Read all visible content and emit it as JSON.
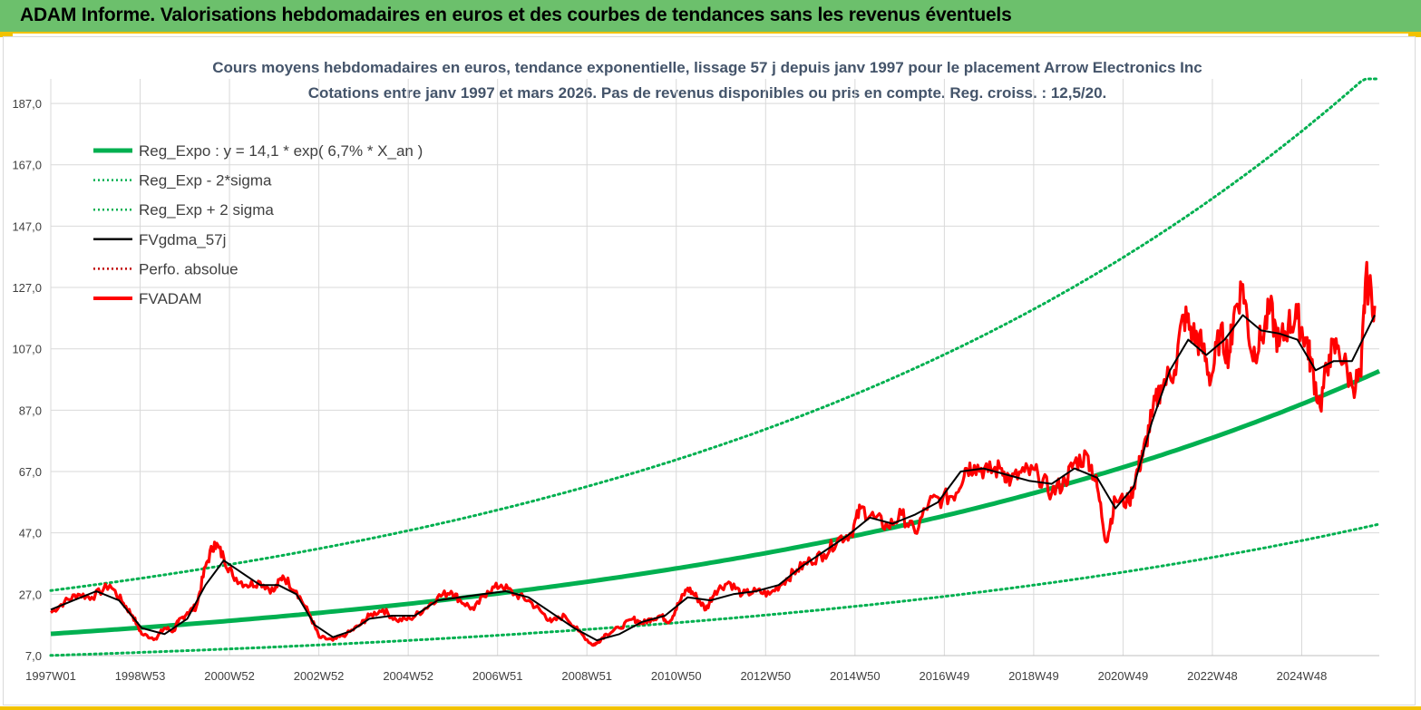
{
  "header": {
    "title": "ADAM Informe. Valorisations hebdomadaires en euros et des courbes de tendances sans les revenus éventuels"
  },
  "colors": {
    "header_bg": "#6cc06c",
    "accent": "#f2c200",
    "reg_green": "#00b050",
    "price_red": "#ff0000",
    "smooth_black": "#000000",
    "grid": "#d9d9d9"
  },
  "chart_data": {
    "type": "line",
    "title": [
      "Cours moyens hebdomadaires en euros, tendance exponentielle, lissage 57 j depuis janv 1997 pour le placement Arrow Electronics Inc",
      "Cotations entre janv 1997 et mars 2026. Pas de revenus disponibles ou pris en compte. Reg. croiss. : 12,5/20."
    ],
    "xlabel": "",
    "ylabel": "",
    "x_range_years": [
      1997.0,
      2026.2
    ],
    "ylim": [
      7.0,
      195.0
    ],
    "y_ticks": [
      "7,0",
      "27,0",
      "47,0",
      "67,0",
      "87,0",
      "107,0",
      "127,0",
      "147,0",
      "167,0",
      "187,0"
    ],
    "x_ticks": [
      "1997W01",
      "1998W53",
      "2000W52",
      "2002W52",
      "2004W52",
      "2006W51",
      "2008W51",
      "2010W50",
      "2012W50",
      "2014W50",
      "2016W49",
      "2018W49",
      "2020W49",
      "2022W48",
      "2024W48"
    ],
    "grid": true,
    "legend_position": "top-left",
    "legend": [
      {
        "label": "Reg_Expo : y = 14,1 * exp( 6,7% *  X_an )",
        "style": "solid-thick",
        "color": "#00b050"
      },
      {
        "label": "Reg_Exp - 2*sigma",
        "style": "dotted",
        "color": "#00b050"
      },
      {
        "label": "Reg_Exp + 2 sigma",
        "style": "dotted",
        "color": "#00b050"
      },
      {
        "label": "FVgdma_57j",
        "style": "solid",
        "color": "#000000"
      },
      {
        "label": "Perfo. absolue",
        "style": "dotted",
        "color": "#c00000"
      },
      {
        "label": "FVADAM",
        "style": "solid-thick",
        "color": "#ff0000"
      }
    ],
    "regression": {
      "a": 14.1,
      "growth": 0.067,
      "lower_factor": 0.5,
      "upper_factor": 2.0
    },
    "series": [
      {
        "name": "FVADAM",
        "x": [
          1997.0,
          1997.3,
          1997.6,
          1997.9,
          1998.3,
          1998.6,
          1998.8,
          1999.0,
          1999.3,
          1999.5,
          1999.7,
          1999.8,
          2000.0,
          2000.2,
          2000.4,
          2000.6,
          2000.8,
          2001.0,
          2001.3,
          2001.6,
          2001.9,
          2002.1,
          2002.4,
          2002.7,
          2002.9,
          2003.2,
          2003.5,
          2003.8,
          2004.0,
          2004.3,
          2004.6,
          2004.9,
          2005.2,
          2005.5,
          2005.8,
          2006.0,
          2006.3,
          2006.6,
          2006.9,
          2007.2,
          2007.5,
          2007.8,
          2008.0,
          2008.3,
          2008.6,
          2008.9,
          2009.0,
          2009.2,
          2009.5,
          2009.8,
          2010.0,
          2010.2,
          2010.4,
          2010.6,
          2010.8,
          2011.0,
          2011.2,
          2011.4,
          2011.6,
          2011.9,
          2012.2,
          2012.5,
          2012.8,
          2013.1,
          2013.4,
          2013.7,
          2014.0,
          2014.3,
          2014.6,
          2014.8,
          2015.1,
          2015.4,
          2015.7,
          2016.0,
          2016.3,
          2016.6,
          2016.9,
          2017.1,
          2017.3,
          2017.6,
          2017.9,
          2018.1,
          2018.4,
          2018.7,
          2019.0,
          2019.3,
          2019.5,
          2019.8,
          2020.0,
          2020.2,
          2020.4,
          2020.7,
          2020.9,
          2021.0,
          2021.2,
          2021.4,
          2021.7,
          2021.9,
          2022.1,
          2022.3,
          2022.5,
          2022.7,
          2022.9,
          2023.0,
          2023.2,
          2023.4,
          2023.6,
          2023.8,
          2024.0,
          2024.2,
          2024.4,
          2024.6,
          2024.7,
          2024.9,
          2025.1,
          2025.3,
          2025.6,
          2025.8,
          2025.9,
          2026.1
        ],
        "values": [
          21.0,
          24.5,
          27.0,
          26.0,
          30.0,
          24.0,
          20.0,
          14.0,
          12.5,
          16.0,
          15.0,
          18.0,
          21.0,
          23.0,
          36.0,
          44.0,
          39.0,
          33.0,
          30.0,
          31.0,
          28.0,
          33.0,
          28.0,
          20.0,
          13.0,
          12.0,
          14.0,
          17.0,
          20.0,
          22.0,
          18.5,
          19.0,
          22.0,
          26.0,
          28.0,
          25.0,
          22.0,
          28.0,
          30.0,
          27.0,
          25.0,
          21.0,
          18.0,
          20.0,
          15.0,
          10.5,
          11.0,
          14.0,
          16.0,
          19.0,
          17.5,
          19.0,
          20.0,
          18.0,
          24.0,
          29.0,
          26.0,
          22.0,
          28.0,
          31.0,
          27.0,
          28.0,
          27.0,
          31.0,
          35.0,
          38.0,
          40.0,
          45.0,
          47.0,
          55.0,
          52.0,
          49.0,
          53.0,
          47.0,
          57.0,
          58.0,
          60.0,
          68.0,
          69.0,
          67.0,
          68.0,
          64.0,
          67.0,
          66.0,
          60.0,
          64.0,
          70.0,
          72.0,
          62.0,
          44.0,
          58.0,
          57.0,
          68.0,
          72.0,
          85.0,
          95.0,
          100.0,
          118.0,
          112.0,
          108.0,
          97.0,
          112.0,
          105.0,
          118.0,
          128.0,
          105.0,
          110.0,
          120.0,
          108.0,
          115.0,
          117.0,
          110.0,
          102.0,
          88.0,
          105.0,
          108.0,
          95.0,
          98.0,
          130.0,
          121.0
        ]
      },
      {
        "name": "FVgdma_57j",
        "x": [
          1997.0,
          1997.5,
          1998.0,
          1998.5,
          1999.0,
          1999.5,
          2000.0,
          2000.4,
          2000.8,
          2001.2,
          2001.6,
          2002.0,
          2002.4,
          2002.8,
          2003.2,
          2003.6,
          2004.0,
          2004.5,
          2005.0,
          2005.5,
          2006.0,
          2006.5,
          2007.0,
          2007.5,
          2008.0,
          2008.5,
          2009.0,
          2009.5,
          2010.0,
          2010.5,
          2011.0,
          2011.5,
          2012.0,
          2012.5,
          2013.0,
          2013.5,
          2014.0,
          2014.5,
          2015.0,
          2015.5,
          2016.0,
          2016.5,
          2017.0,
          2017.5,
          2018.0,
          2018.5,
          2019.0,
          2019.5,
          2020.0,
          2020.4,
          2020.8,
          2021.2,
          2021.6,
          2022.0,
          2022.4,
          2022.8,
          2023.2,
          2023.6,
          2024.0,
          2024.4,
          2024.8,
          2025.2,
          2025.6,
          2026.0,
          2026.1
        ],
        "values": [
          22.0,
          25.0,
          28.0,
          25.0,
          16.0,
          14.0,
          19.0,
          30.0,
          38.0,
          34.0,
          30.0,
          30.0,
          27.0,
          17.0,
          13.0,
          15.0,
          19.0,
          20.0,
          20.0,
          25.0,
          26.0,
          27.0,
          28.0,
          26.0,
          21.0,
          16.0,
          12.0,
          14.0,
          18.0,
          20.0,
          26.0,
          25.0,
          27.0,
          28.0,
          30.0,
          36.0,
          41.0,
          46.0,
          52.0,
          50.0,
          53.0,
          57.0,
          67.0,
          68.0,
          66.0,
          64.0,
          63.0,
          68.0,
          65.0,
          55.0,
          62.0,
          83.0,
          100.0,
          110.0,
          105.0,
          110.0,
          118.0,
          113.0,
          112.0,
          110.0,
          100.0,
          103.0,
          103.0,
          115.0,
          118.0
        ]
      }
    ]
  }
}
